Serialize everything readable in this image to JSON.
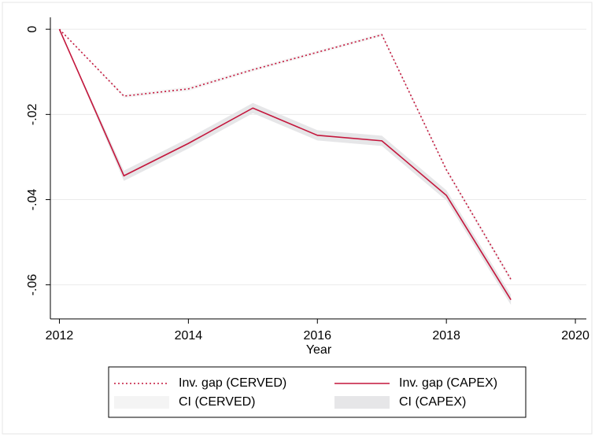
{
  "chart_data": {
    "type": "line",
    "xlabel": "Year",
    "x": [
      2012,
      2013,
      2014,
      2015,
      2016,
      2017,
      2018,
      2019
    ],
    "xlim": [
      2011.86,
      2020.17
    ],
    "xticks": [
      2012,
      2014,
      2016,
      2018,
      2020
    ],
    "ylim": [
      -0.068,
      0.0028
    ],
    "yticks": [
      0,
      {
        "value": -0.02,
        "label": "-.02"
      },
      {
        "value": -0.04,
        "label": "-.04"
      },
      {
        "value": -0.06,
        "label": "-.06"
      }
    ],
    "grid": true,
    "legend": "bottom",
    "series": [
      {
        "name": "Inv. gap (CERVED)",
        "color": "#c4163c",
        "style": "dotted",
        "values": [
          0,
          -0.0157,
          -0.014,
          -0.0095,
          -0.0054,
          -0.0013,
          -0.033,
          -0.0587
        ]
      },
      {
        "name": "Inv. gap (CAPEX)",
        "color": "#c4163c",
        "style": "solid",
        "values": [
          0,
          -0.0344,
          -0.0268,
          -0.0185,
          -0.0249,
          -0.0262,
          -0.039,
          -0.0635
        ]
      }
    ],
    "ci": [
      {
        "name": "CI (CERVED)",
        "color": "#f4f4f4",
        "lower": [
          0,
          -0.0161,
          -0.0145,
          -0.0099,
          -0.0058,
          -0.0017,
          -0.0335,
          -0.0593
        ],
        "upper": [
          0,
          -0.0153,
          -0.0135,
          -0.0091,
          -0.005,
          -0.0009,
          -0.0325,
          -0.0581
        ]
      },
      {
        "name": "CI (CAPEX)",
        "color": "#e6e6e8",
        "lower": [
          0,
          -0.0356,
          -0.028,
          -0.0197,
          -0.0261,
          -0.0274,
          -0.0402,
          -0.0647
        ],
        "upper": [
          0,
          -0.0332,
          -0.0256,
          -0.0173,
          -0.0237,
          -0.025,
          -0.0378,
          -0.0623
        ]
      }
    ]
  }
}
